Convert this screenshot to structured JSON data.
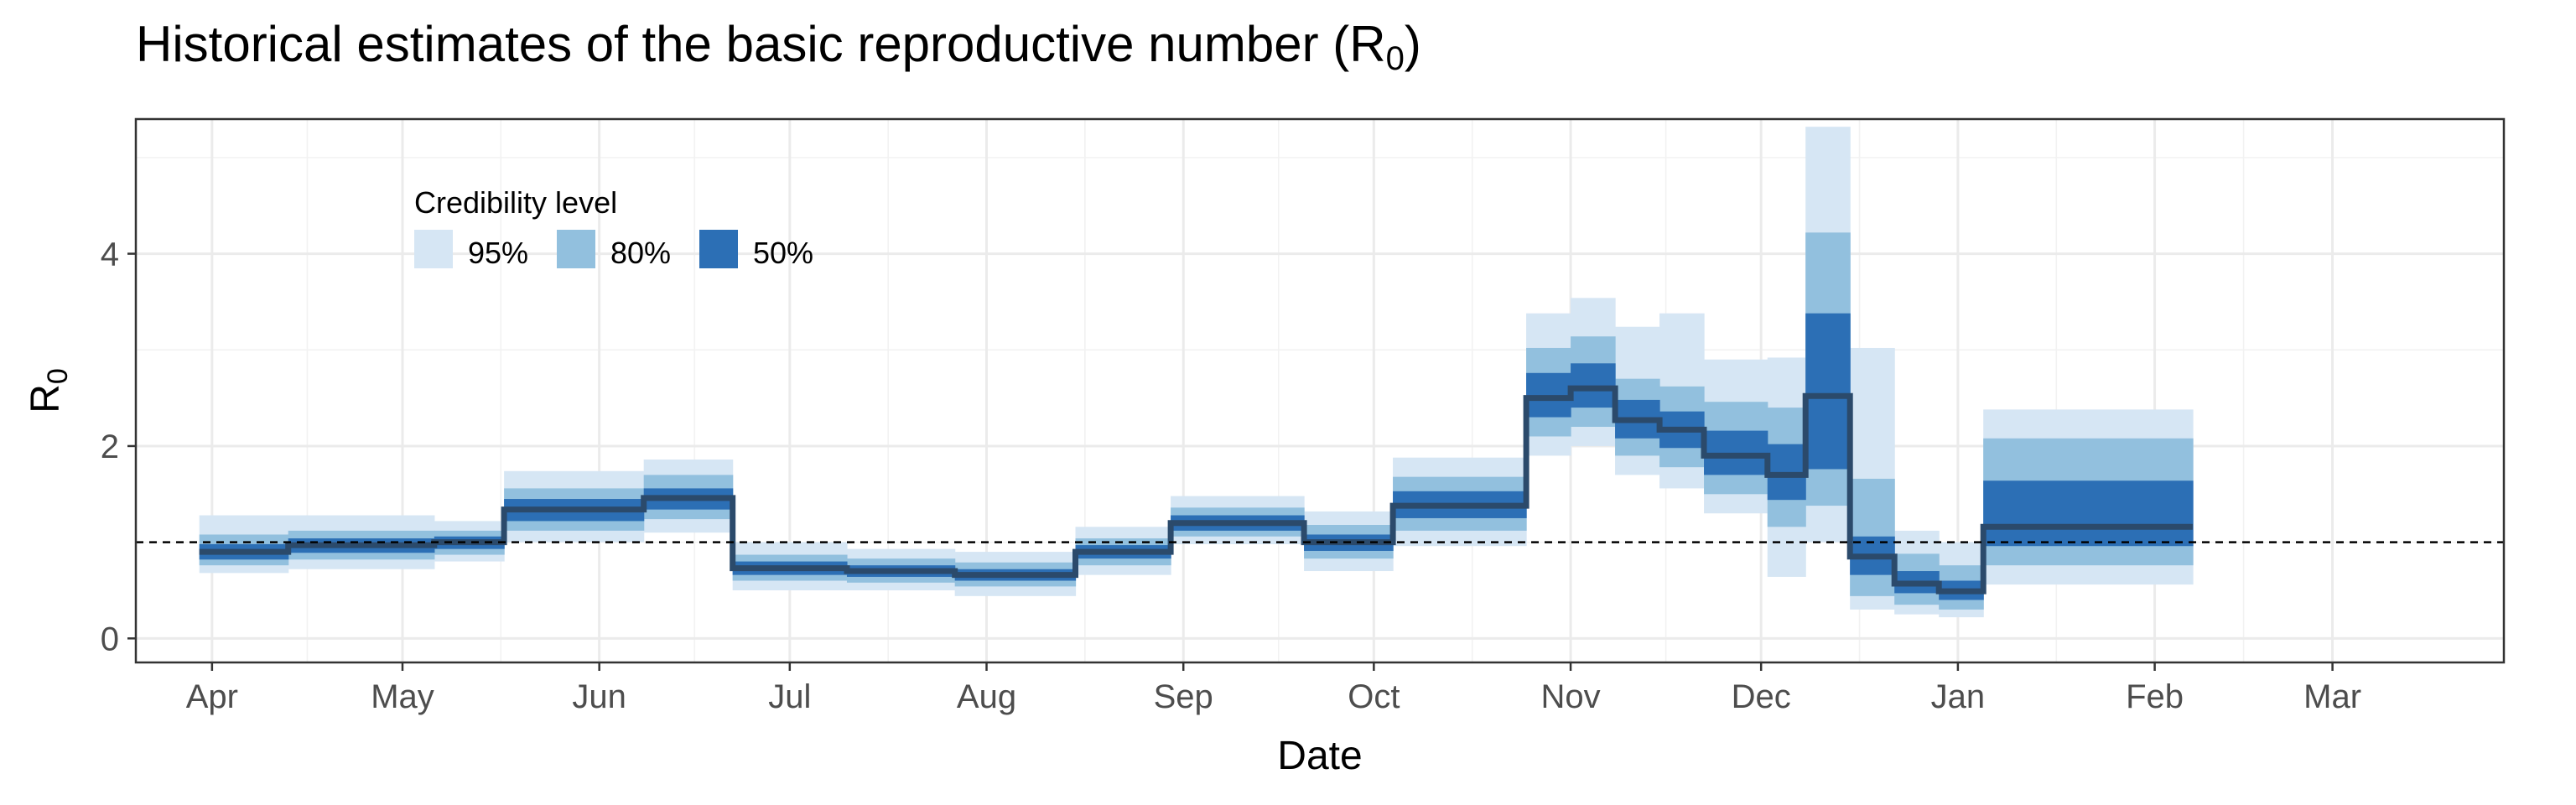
{
  "chart_data": {
    "type": "area",
    "title": "Historical estimates of the basic reproductive number (R",
    "title_subscript": "0",
    "title_close": ")",
    "xlabel": "Date",
    "ylabel": "R",
    "ylabel_subscript": "0",
    "ylim": [
      -0.25,
      5.4
    ],
    "xlim": [
      "2020-03-20",
      "2021-03-28"
    ],
    "yticks": [
      0,
      2,
      4
    ],
    "xticks": [
      {
        "label": "Apr",
        "date": "2020-04-01"
      },
      {
        "label": "May",
        "date": "2020-05-01"
      },
      {
        "label": "Jun",
        "date": "2020-06-01"
      },
      {
        "label": "Jul",
        "date": "2020-07-01"
      },
      {
        "label": "Aug",
        "date": "2020-08-01"
      },
      {
        "label": "Sep",
        "date": "2020-09-01"
      },
      {
        "label": "Oct",
        "date": "2020-10-01"
      },
      {
        "label": "Nov",
        "date": "2020-11-01"
      },
      {
        "label": "Dec",
        "date": "2020-12-01"
      },
      {
        "label": "Jan",
        "date": "2021-01-01"
      },
      {
        "label": "Feb",
        "date": "2021-02-01"
      },
      {
        "label": "Mar",
        "date": "2021-03-01"
      }
    ],
    "reference_line": 1,
    "grid": true,
    "legend": {
      "title": "Credibility level",
      "placement": "top-left",
      "entries": [
        {
          "label": "95%",
          "color": "#d6e6f4"
        },
        {
          "label": "80%",
          "color": "#92c0de"
        },
        {
          "label": "50%",
          "color": "#2c6fb5"
        }
      ]
    },
    "colors": {
      "median": "#2b4a6b",
      "ci95": "#d6e6f4",
      "ci80": "#92c0de",
      "ci50": "#2c6fb5"
    },
    "segments": [
      {
        "start": "2020-03-30",
        "end": "2020-04-13",
        "median": 0.9,
        "lo50": 0.82,
        "hi50": 0.98,
        "lo80": 0.76,
        "hi80": 1.08,
        "lo95": 0.68,
        "hi95": 1.28
      },
      {
        "start": "2020-04-13",
        "end": "2020-05-06",
        "median": 0.97,
        "lo50": 0.89,
        "hi50": 1.04,
        "lo80": 0.82,
        "hi80": 1.12,
        "lo95": 0.72,
        "hi95": 1.28
      },
      {
        "start": "2020-05-06",
        "end": "2020-05-17",
        "median": 1.0,
        "lo50": 0.93,
        "hi50": 1.06,
        "lo80": 0.87,
        "hi80": 1.12,
        "lo95": 0.8,
        "hi95": 1.22
      },
      {
        "start": "2020-05-17",
        "end": "2020-06-08",
        "median": 1.34,
        "lo50": 1.22,
        "hi50": 1.45,
        "lo80": 1.12,
        "hi80": 1.56,
        "lo95": 1.0,
        "hi95": 1.74
      },
      {
        "start": "2020-06-08",
        "end": "2020-06-22",
        "median": 1.46,
        "lo50": 1.34,
        "hi50": 1.56,
        "lo80": 1.24,
        "hi80": 1.7,
        "lo95": 1.1,
        "hi95": 1.86
      },
      {
        "start": "2020-06-22",
        "end": "2020-07-10",
        "median": 0.73,
        "lo50": 0.66,
        "hi50": 0.8,
        "lo80": 0.6,
        "hi80": 0.87,
        "lo95": 0.5,
        "hi95": 1.0
      },
      {
        "start": "2020-07-10",
        "end": "2020-07-27",
        "median": 0.7,
        "lo50": 0.64,
        "hi50": 0.76,
        "lo80": 0.58,
        "hi80": 0.83,
        "lo95": 0.5,
        "hi95": 0.93
      },
      {
        "start": "2020-07-27",
        "end": "2020-08-15",
        "median": 0.66,
        "lo50": 0.6,
        "hi50": 0.72,
        "lo80": 0.54,
        "hi80": 0.79,
        "lo95": 0.44,
        "hi95": 0.9
      },
      {
        "start": "2020-08-15",
        "end": "2020-08-30",
        "median": 0.9,
        "lo50": 0.83,
        "hi50": 0.97,
        "lo80": 0.76,
        "hi80": 1.04,
        "lo95": 0.66,
        "hi95": 1.16
      },
      {
        "start": "2020-08-30",
        "end": "2020-09-20",
        "median": 1.2,
        "lo50": 1.12,
        "hi50": 1.28,
        "lo80": 1.06,
        "hi80": 1.36,
        "lo95": 0.98,
        "hi95": 1.48
      },
      {
        "start": "2020-09-20",
        "end": "2020-10-04",
        "median": 1.0,
        "lo50": 0.91,
        "hi50": 1.08,
        "lo80": 0.83,
        "hi80": 1.18,
        "lo95": 0.7,
        "hi95": 1.32
      },
      {
        "start": "2020-10-04",
        "end": "2020-10-25",
        "median": 1.38,
        "lo50": 1.25,
        "hi50": 1.53,
        "lo80": 1.12,
        "hi80": 1.68,
        "lo95": 0.96,
        "hi95": 1.88
      },
      {
        "start": "2020-10-25",
        "end": "2020-11-01",
        "median": 2.5,
        "lo50": 2.3,
        "hi50": 2.76,
        "lo80": 2.1,
        "hi80": 3.02,
        "lo95": 1.9,
        "hi95": 3.38
      },
      {
        "start": "2020-11-01",
        "end": "2020-11-08",
        "median": 2.6,
        "lo50": 2.4,
        "hi50": 2.86,
        "lo80": 2.2,
        "hi80": 3.14,
        "lo95": 2.0,
        "hi95": 3.54
      },
      {
        "start": "2020-11-08",
        "end": "2020-11-15",
        "median": 2.27,
        "lo50": 2.08,
        "hi50": 2.48,
        "lo80": 1.9,
        "hi80": 2.7,
        "lo95": 1.7,
        "hi95": 3.24
      },
      {
        "start": "2020-11-15",
        "end": "2020-11-22",
        "median": 2.17,
        "lo50": 1.98,
        "hi50": 2.36,
        "lo80": 1.78,
        "hi80": 2.62,
        "lo95": 1.56,
        "hi95": 3.38
      },
      {
        "start": "2020-11-22",
        "end": "2020-12-02",
        "median": 1.9,
        "lo50": 1.7,
        "hi50": 2.16,
        "lo80": 1.5,
        "hi80": 2.46,
        "lo95": 1.3,
        "hi95": 2.9
      },
      {
        "start": "2020-12-02",
        "end": "2020-12-08",
        "median": 1.7,
        "lo50": 1.44,
        "hi50": 2.02,
        "lo80": 1.16,
        "hi80": 2.4,
        "lo95": 0.64,
        "hi95": 2.92
      },
      {
        "start": "2020-12-08",
        "end": "2020-12-15",
        "median": 2.52,
        "lo50": 1.76,
        "hi50": 3.38,
        "lo80": 1.38,
        "hi80": 4.22,
        "lo95": 1.0,
        "hi95": 5.32
      },
      {
        "start": "2020-12-15",
        "end": "2020-12-22",
        "median": 0.85,
        "lo50": 0.66,
        "hi50": 1.06,
        "lo80": 0.44,
        "hi80": 1.66,
        "lo95": 0.3,
        "hi95": 3.02
      },
      {
        "start": "2020-12-22",
        "end": "2020-12-29",
        "median": 0.57,
        "lo50": 0.47,
        "hi50": 0.7,
        "lo80": 0.35,
        "hi80": 0.88,
        "lo95": 0.25,
        "hi95": 1.12
      },
      {
        "start": "2020-12-29",
        "end": "2021-01-05",
        "median": 0.49,
        "lo50": 0.4,
        "hi50": 0.6,
        "lo80": 0.3,
        "hi80": 0.76,
        "lo95": 0.22,
        "hi95": 1.0
      },
      {
        "start": "2021-01-05",
        "end": "2021-02-07",
        "median": 1.16,
        "lo50": 0.96,
        "hi50": 1.64,
        "lo80": 0.76,
        "hi80": 2.08,
        "lo95": 0.56,
        "hi95": 2.38
      }
    ]
  }
}
